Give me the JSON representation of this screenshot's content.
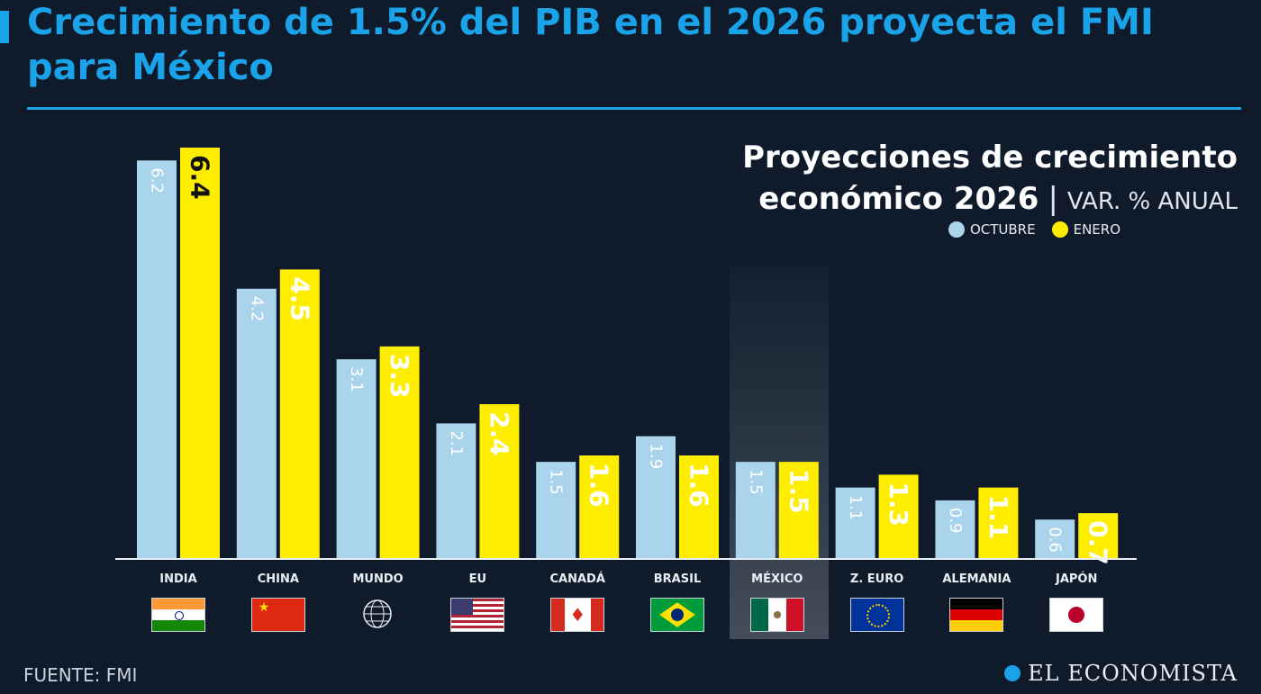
{
  "headline": "Crecimiento de 1.5% del PIB en el 2026 proyecta el FMI para México",
  "chart_title": {
    "line1": "Proyecciones de crecimiento",
    "line2": "económico 2026",
    "unit": "VAR. % ANUAL"
  },
  "colors": {
    "accent": "#1aa3e8",
    "octubre": "#a9d4ec",
    "enero": "#ffed00",
    "background": "#0f1b2b"
  },
  "source": "FUENTE: FMI",
  "brand": "EL ECONOMISTA",
  "chart_data": {
    "type": "bar",
    "categories": [
      "INDIA",
      "CHINA",
      "MUNDO",
      "EU",
      "CANADÁ",
      "BRASIL",
      "MÉXICO",
      "Z. EURO",
      "ALEMANIA",
      "JAPÓN"
    ],
    "flags": [
      "india-flag-icon",
      "china-flag-icon",
      "globe-icon",
      "usa-flag-icon",
      "canada-flag-icon",
      "brazil-flag-icon",
      "mexico-flag-icon",
      "eu-flag-icon",
      "germany-flag-icon",
      "japan-flag-icon"
    ],
    "series": [
      {
        "name": "OCTUBRE",
        "values": [
          6.2,
          4.2,
          3.1,
          2.1,
          1.5,
          1.9,
          1.5,
          1.1,
          0.9,
          0.6
        ],
        "labels": [
          "6.2",
          "4.2",
          "3.1",
          "2.1",
          "1.5",
          "1.9",
          "1.5",
          "1.1",
          "0.9",
          "0.6"
        ]
      },
      {
        "name": "ENERO",
        "values": [
          6.4,
          4.5,
          3.3,
          2.4,
          1.6,
          1.6,
          1.5,
          1.3,
          1.1,
          0.7
        ],
        "labels": [
          "6.4",
          "4.5",
          "3.3",
          "2.4",
          "1.6",
          "1.6",
          "1.5",
          "1.3",
          "1.1",
          "0.7"
        ]
      }
    ],
    "highlight": "MÉXICO",
    "ylim": [
      0,
      6.4
    ],
    "legend": "top-right",
    "grid": false
  }
}
